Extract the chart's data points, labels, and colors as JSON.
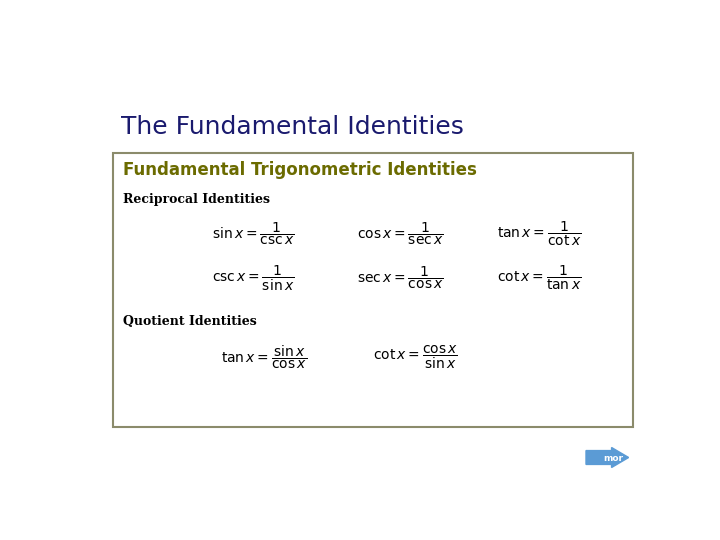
{
  "title": "The Fundamental Identities",
  "title_color": "#1a1a6e",
  "title_fontsize": 18,
  "box_title": "Fundamental Trigonometric Identities",
  "box_title_color": "#6b6b00",
  "box_bg": "#ffffff",
  "box_border": "#8B8B6B",
  "background_color": "#ffffff",
  "reciprocal_label": "Reciprocal Identities",
  "quotient_label": "Quotient Identities",
  "label_color": "#000000",
  "formula_color": "#000000",
  "formula_fontsize": 10,
  "arrow_color": "#5b9bd5",
  "arrow_text": "mor"
}
